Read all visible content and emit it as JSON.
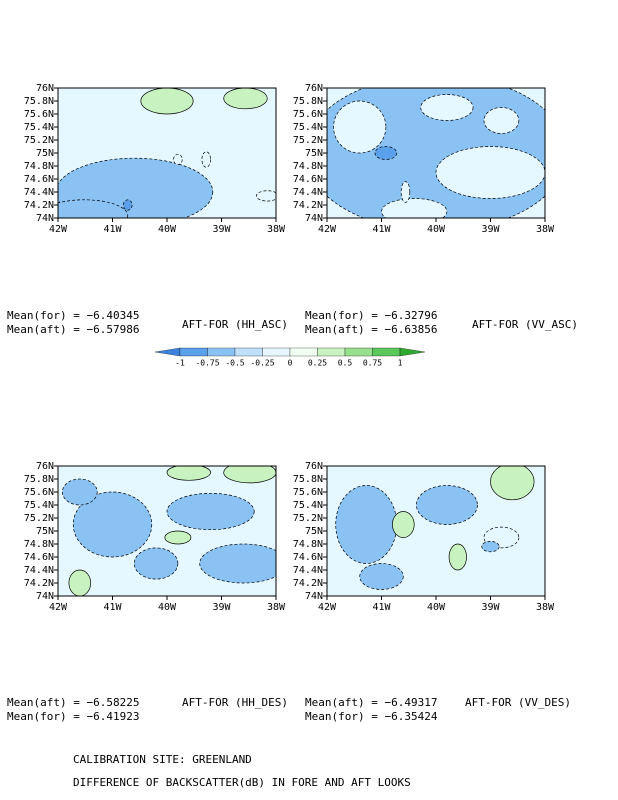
{
  "chart_data": {
    "type": "contour-map",
    "xlim": [
      -42,
      -38
    ],
    "ylim": [
      74,
      76
    ],
    "xticks": [
      {
        "value": -42,
        "label": "42W"
      },
      {
        "value": -41,
        "label": "41W"
      },
      {
        "value": -40,
        "label": "40W"
      },
      {
        "value": -39,
        "label": "39W"
      },
      {
        "value": -38,
        "label": "38W"
      }
    ],
    "yticks": [
      {
        "value": 74,
        "label": "74N"
      },
      {
        "value": 74.2,
        "label": "74.2N"
      },
      {
        "value": 74.4,
        "label": "74.4N"
      },
      {
        "value": 74.6,
        "label": "74.6N"
      },
      {
        "value": 74.8,
        "label": "74.8N"
      },
      {
        "value": 75,
        "label": "75N"
      },
      {
        "value": 75.2,
        "label": "75.2N"
      },
      {
        "value": 75.4,
        "label": "75.4N"
      },
      {
        "value": 75.6,
        "label": "75.6N"
      },
      {
        "value": 75.8,
        "label": "75.8N"
      },
      {
        "value": 76,
        "label": "76N"
      }
    ],
    "panels": [
      {
        "title": "AFT-FOR (HH_ASC)",
        "means": [
          "Mean(for) = −6.40345",
          "Mean(aft) = −6.57986"
        ]
      },
      {
        "title": "AFT-FOR (VV_ASC)",
        "means": [
          "Mean(for) = −6.32796",
          "Mean(aft) = −6.63856"
        ]
      },
      {
        "title": "AFT-FOR (HH_DES)",
        "means": [
          "Mean(aft) = −6.58225",
          "Mean(for) = −6.41923"
        ]
      },
      {
        "title": "AFT-FOR (VV_DES)",
        "means": [
          "Mean(aft) = −6.49317",
          "Mean(for) = −6.35424"
        ]
      }
    ],
    "colorbar": {
      "levels": [
        -1,
        -0.75,
        -0.5,
        -0.25,
        0,
        0.25,
        0.5,
        0.75,
        1
      ],
      "colors": [
        "#3c82dc",
        "#5aa0ea",
        "#8ac2f4",
        "#bfe0fa",
        "#e6f8ff",
        "#f0fff0",
        "#c8f2c0",
        "#96e08e",
        "#5cc85c",
        "#2ea82e"
      ]
    },
    "footer": [
      "CALIBRATION SITE: GREENLAND",
      "DIFFERENCE OF BACKSCATTER(dB) IN FORE AND AFT LOOKS"
    ]
  }
}
